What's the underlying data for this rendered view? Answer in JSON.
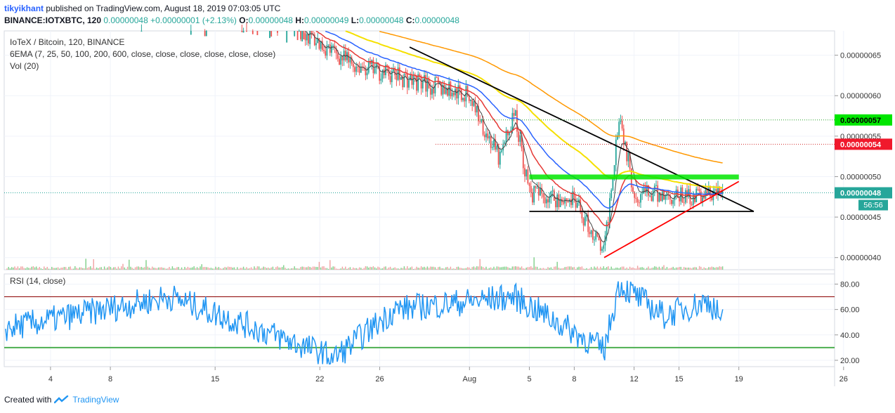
{
  "header": {
    "author": "tikyikhant",
    "published": " published on TradingView.com, August 18, 2019 07:03:05 UTC",
    "symbol": "BINANCE:IOTXBTC, 120",
    "last": "0.00000048",
    "change": "+0.00000001 (+2.13%)",
    "o_label": "O:",
    "o": "0.00000048",
    "h_label": "H:",
    "h": "0.00000049",
    "l_label": "L:",
    "l": "0.00000048",
    "c_label": "C:",
    "c": "0.00000048"
  },
  "legend": {
    "title": "IoTeX / Bitcoin, 120, BINANCE",
    "ema": "6EMA (7, 25, 50, 100, 200, 600, close, close, close, close, close, close)",
    "vol": "Vol (20)",
    "rsi": "RSI (14, close)"
  },
  "price_tags": {
    "resistance": "0.00000057",
    "current_high": "0.00000054",
    "last": "0.00000048",
    "countdown": "56:56"
  },
  "footer": {
    "created_with": "Created with",
    "brand": "TradingView"
  },
  "colors": {
    "up": "#26a69a",
    "down": "#ef5350",
    "ema_fast": "#444444",
    "ema_red": "#e53935",
    "ema_blue": "#2962ff",
    "ema_yellow": "#f5e000",
    "rsi_line": "#2196f3",
    "rsi_band_upper": "#8b0000",
    "rsi_band_lower": "#4caf50",
    "trend_black": "#000000",
    "trend_red": "#ff0000",
    "zone_green": "#00e600",
    "tag_green": "#00e600",
    "tag_red": "#f0192c",
    "tag_teal": "#26a69a"
  },
  "chart_data": [
    {
      "type": "candlestick",
      "title": "IoTeX / Bitcoin, 120, BINANCE",
      "y_axis_ticks": [
        "0.00000065",
        "0.00000060",
        "0.00000055",
        "0.00000050",
        "0.00000045",
        "0.00000040"
      ],
      "ylim": [
        3.85e-07,
        6.8e-07
      ],
      "x_axis_ticks": [
        "4",
        "8",
        "15",
        "22",
        "26",
        "Aug",
        "5",
        "8",
        "12",
        "15",
        "19",
        "26"
      ],
      "annotations": [
        {
          "type": "descending-trendline",
          "from": [
            "Jul 28",
            6.6e-07
          ],
          "to": [
            "Aug 20",
            4.57e-07
          ]
        },
        {
          "type": "horizontal-support",
          "value": 4.57e-07,
          "from": "Aug 5",
          "to": "Aug 20"
        },
        {
          "type": "ascending-trendline",
          "from": [
            "Aug 10",
            4e-07
          ],
          "to": [
            "Aug 19",
            4.94e-07
          ]
        },
        {
          "type": "resistance-zone",
          "value": 5e-07,
          "from": "Aug 5",
          "to": "Aug 19"
        },
        {
          "type": "dotted-level",
          "value": 5.7e-07
        },
        {
          "type": "dotted-level",
          "value": 5.4e-07
        },
        {
          "type": "dotted-level",
          "value": 4.8e-07
        }
      ],
      "trend_shape": [
        {
          "t": "Jul 1",
          "close": 7.2e-07
        },
        {
          "t": "Jul 20",
          "close": 6.9e-07
        },
        {
          "t": "Jul 24",
          "close": 6.4e-07
        },
        {
          "t": "Jul 28",
          "close": 6.2e-07
        },
        {
          "t": "Aug 1",
          "close": 6e-07
        },
        {
          "t": "Aug 3",
          "close": 5.2e-07
        },
        {
          "t": "Aug 4",
          "close": 5.8e-07
        },
        {
          "t": "Aug 5",
          "close": 4.8e-07
        },
        {
          "t": "Aug 8",
          "close": 4.7e-07
        },
        {
          "t": "Aug 10",
          "close": 4.05e-07
        },
        {
          "t": "Aug 11",
          "close": 5.8e-07
        },
        {
          "t": "Aug 12",
          "close": 4.8e-07
        },
        {
          "t": "Aug 15",
          "close": 4.75e-07
        },
        {
          "t": "Aug 18",
          "close": 4.8e-07
        }
      ]
    },
    {
      "type": "line",
      "title": "RSI (14, close)",
      "y_axis_ticks": [
        "80.00",
        "60.00",
        "40.00",
        "20.00"
      ],
      "ylim": [
        15,
        88
      ],
      "bands": [
        70,
        30
      ],
      "shape": [
        {
          "t": "Jul 1",
          "rsi": 45
        },
        {
          "t": "Jul 12",
          "rsi": 70
        },
        {
          "t": "Jul 23",
          "rsi": 22
        },
        {
          "t": "Jul 27",
          "rsi": 60
        },
        {
          "t": "Aug 4",
          "rsi": 70
        },
        {
          "t": "Aug 10",
          "rsi": 28
        },
        {
          "t": "Aug 11",
          "rsi": 80
        },
        {
          "t": "Aug 14",
          "rsi": 55
        },
        {
          "t": "Aug 17",
          "rsi": 67
        },
        {
          "t": "Aug 18",
          "rsi": 50
        }
      ]
    }
  ]
}
